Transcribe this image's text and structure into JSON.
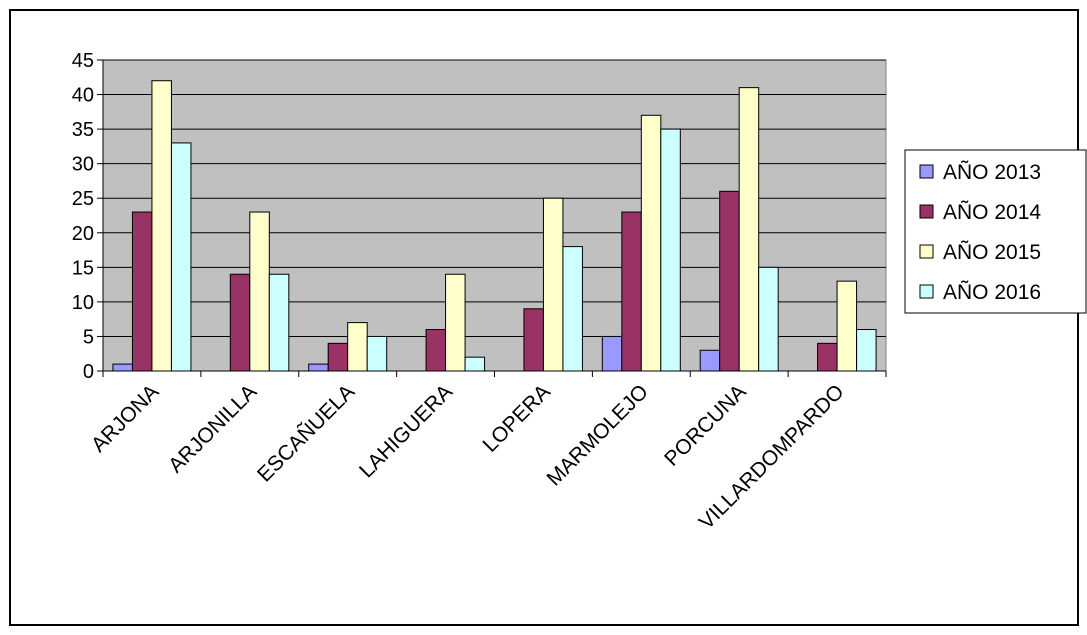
{
  "chart_data": {
    "type": "bar",
    "categories": [
      "ARJONA",
      "ARJONILLA",
      "ESCAÑUELA",
      "LAHIGUERA",
      "LOPERA",
      "MARMOLEJO",
      "PORCUNA",
      "VILLARDOMPARDO"
    ],
    "series": [
      {
        "name": "AÑO 2013",
        "color": "#9999ff",
        "values": [
          1,
          0,
          1,
          0,
          0,
          5,
          3,
          0
        ]
      },
      {
        "name": "AÑO 2014",
        "color": "#993366",
        "values": [
          23,
          14,
          4,
          6,
          9,
          23,
          26,
          4
        ]
      },
      {
        "name": "AÑO 2015",
        "color": "#ffffcc",
        "values": [
          42,
          23,
          7,
          14,
          25,
          37,
          41,
          13
        ]
      },
      {
        "name": "AÑO 2016",
        "color": "#ccffff",
        "values": [
          33,
          14,
          5,
          2,
          18,
          35,
          15,
          6
        ]
      }
    ],
    "ylim": [
      0,
      45
    ],
    "yticks": [
      0,
      5,
      10,
      15,
      20,
      25,
      30,
      35,
      40,
      45
    ],
    "grid": true,
    "plot_background": "#c0c0c0",
    "legend_position": "right"
  }
}
